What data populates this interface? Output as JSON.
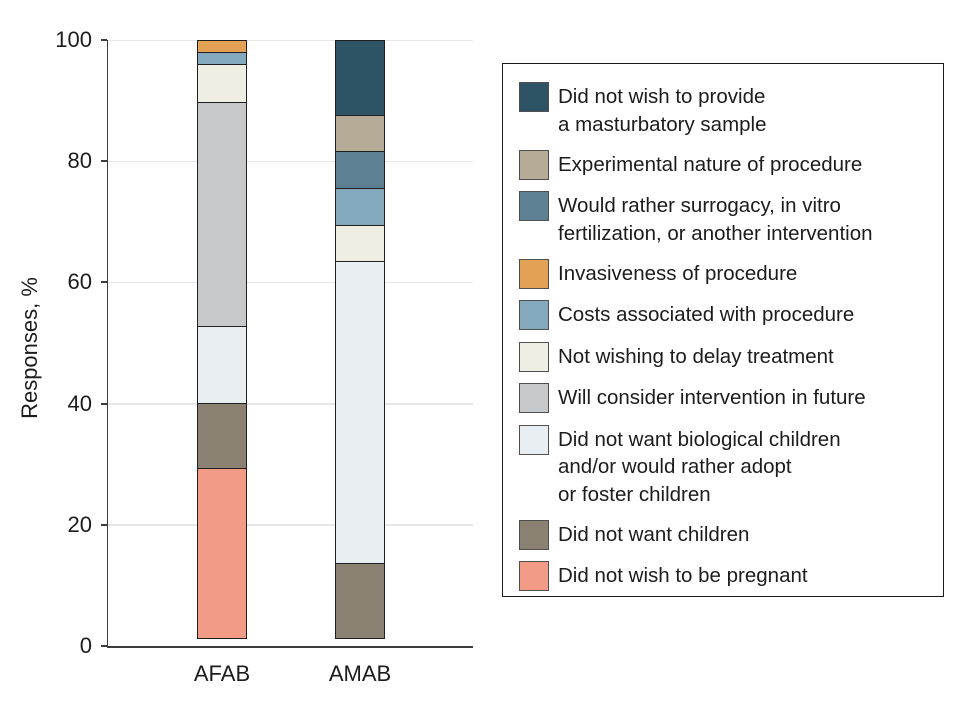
{
  "chart_data": {
    "type": "bar",
    "stacked": true,
    "title": "",
    "xlabel": "",
    "ylabel": "Responses, %",
    "ylim": [
      0,
      100
    ],
    "yticks": [
      0,
      20,
      40,
      60,
      80,
      100
    ],
    "grid": "horizontal-light",
    "legend_position": "right",
    "categories": [
      "AFAB",
      "AMAB"
    ],
    "series": [
      {
        "name": "Did not wish to provide a masturbatory sample",
        "label_lines": [
          "Did not wish to provide",
          "a masturbatory sample"
        ],
        "color": "#2E5364",
        "values": [
          0,
          12.5
        ]
      },
      {
        "name": "Experimental nature of procedure",
        "label_lines": [
          "Experimental nature of procedure"
        ],
        "color": "#B5AB96",
        "values": [
          0,
          6.25
        ]
      },
      {
        "name": "Would rather surrogacy, in vitro fertilization, or another intervention",
        "label_lines": [
          "Would rather surrogacy, in vitro",
          "fertilization, or another intervention"
        ],
        "color": "#5D8193",
        "values": [
          0,
          6.25
        ]
      },
      {
        "name": "Invasiveness of procedure",
        "label_lines": [
          "Invasiveness of procedure"
        ],
        "color": "#E2A155",
        "values": [
          2.2,
          0
        ]
      },
      {
        "name": "Costs associated with procedure",
        "label_lines": [
          "Costs associated with procedure"
        ],
        "color": "#84A9BC",
        "values": [
          2.2,
          6.25
        ]
      },
      {
        "name": "Not wishing to delay treatment",
        "label_lines": [
          "Not wishing to delay treatment"
        ],
        "color": "#EFEEE2",
        "values": [
          6.5,
          6.25
        ]
      },
      {
        "name": "Will consider intervention in future",
        "label_lines": [
          "Will consider intervention in future"
        ],
        "color": "#C7C8CA",
        "values": [
          37.0,
          0
        ]
      },
      {
        "name": "Did not want biological children and/or would rather adopt or foster children",
        "label_lines": [
          "Did not want biological children",
          "and/or would rather adopt",
          "or foster children"
        ],
        "color": "#E8EEF2",
        "values": [
          13.0,
          50
        ]
      },
      {
        "name": "Did not want children",
        "label_lines": [
          "Did not want children"
        ],
        "color": "#8A8173",
        "values": [
          10.9,
          12.5
        ]
      },
      {
        "name": "Did not wish to be pregnant",
        "label_lines": [
          "Did not wish to be pregnant"
        ],
        "color": "#F29C88",
        "values": [
          28.2,
          0
        ]
      }
    ]
  }
}
